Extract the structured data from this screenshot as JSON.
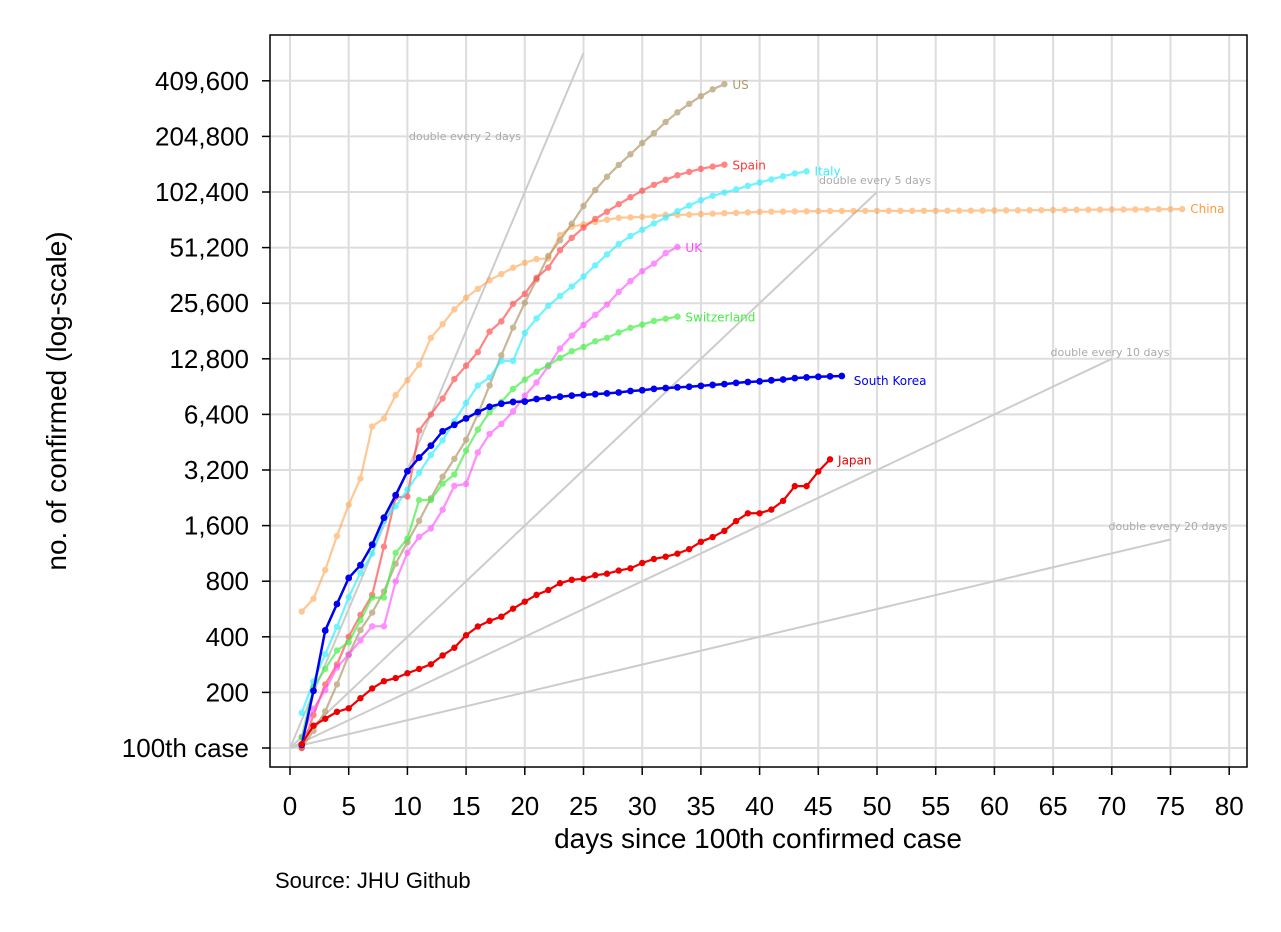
{
  "chart_data": {
    "type": "line",
    "ylabel": "no. of confirmed (log-scale)",
    "xlabel": "days since 100th confirmed case",
    "source": "Source: JHU Github",
    "y_scale": "log2",
    "xlim": [
      0,
      80
    ],
    "ylim": [
      100,
      409600
    ],
    "x_ticks": [
      0,
      5,
      10,
      15,
      20,
      25,
      30,
      35,
      40,
      45,
      50,
      55,
      60,
      65,
      70,
      75,
      80
    ],
    "y_ticks": [
      {
        "value": 100,
        "label": "100th case"
      },
      {
        "value": 200,
        "label": "200"
      },
      {
        "value": 400,
        "label": "400"
      },
      {
        "value": 800,
        "label": "800"
      },
      {
        "value": 1600,
        "label": "1,600"
      },
      {
        "value": 3200,
        "label": "3,200"
      },
      {
        "value": 6400,
        "label": "6,400"
      },
      {
        "value": 12800,
        "label": "12,800"
      },
      {
        "value": 25600,
        "label": "25,600"
      },
      {
        "value": 51200,
        "label": "51,200"
      },
      {
        "value": 102400,
        "label": "102,400"
      },
      {
        "value": 204800,
        "label": "204,800"
      },
      {
        "value": 409600,
        "label": "409,600"
      }
    ],
    "grid": true,
    "reference_lines": [
      {
        "label": "double every 2 days",
        "doubling_days": 2,
        "x_end": 25
      },
      {
        "label": "double every 5 days",
        "doubling_days": 5,
        "x_end": 50
      },
      {
        "label": "double every 10 days",
        "doubling_days": 10,
        "x_end": 70
      },
      {
        "label": "double every 20 days",
        "doubling_days": 20,
        "x_end": 75
      }
    ],
    "series": [
      {
        "name": "China",
        "color": "#ff9a3c",
        "opacity": 0.55,
        "highlight": false,
        "values": [
          548,
          643,
          920,
          1406,
          2075,
          2877,
          5509,
          6087,
          8141,
          9802,
          11891,
          16630,
          19716,
          23707,
          27440,
          30587,
          34110,
          36814,
          39829,
          42354,
          44386,
          44758,
          59895,
          66358,
          68413,
          70513,
          72434,
          74211,
          74619,
          75077,
          75550,
          77001,
          77022,
          77241,
          77754,
          78166,
          78600,
          78928,
          79356,
          79932,
          80136,
          80261,
          80386,
          80537,
          80690,
          80770,
          80823,
          80860,
          80887,
          80921,
          80932,
          80945,
          80977,
          81003,
          81033,
          81058,
          81102,
          81156,
          81250,
          81305,
          81435,
          81498,
          81591,
          81661,
          81782,
          81897,
          81999,
          82122,
          82198,
          82279,
          82361,
          82432,
          82511,
          82600,
          82665,
          82718
        ]
      },
      {
        "name": "US",
        "color": "#b09a6a",
        "opacity": 0.7,
        "highlight": false,
        "values": [
          100,
          124,
          158,
          221,
          319,
          435,
          541,
          704,
          994,
          1301,
          1697,
          2247,
          2943,
          3680,
          4663,
          6411,
          9197,
          13360,
          18882,
          25740,
          34347,
          46135,
          56116,
          68965,
          86005,
          104867,
          123831,
          143532,
          163938,
          188387,
          213318,
          245299,
          276532,
          307317,
          338236,
          368196,
          393000
        ]
      },
      {
        "name": "Spain",
        "color": "#ff3333",
        "opacity": 0.6,
        "highlight": false,
        "values": [
          100,
          151,
          221,
          283,
          400,
          525,
          674,
          1231,
          2277,
          2300,
          5232,
          6391,
          7798,
          9942,
          11748,
          13910,
          17963,
          20410,
          25374,
          28768,
          35136,
          39885,
          49515,
          57786,
          65719,
          73235,
          80110,
          87956,
          95923,
          104118,
          112065,
          119199,
          126168,
          131646,
          136675,
          140510,
          144000
        ]
      },
      {
        "name": "Italy",
        "color": "#33eeff",
        "opacity": 0.7,
        "highlight": false,
        "values": [
          155,
          229,
          322,
          453,
          655,
          888,
          1128,
          1694,
          2036,
          2502,
          3089,
          3858,
          4636,
          5883,
          7375,
          9172,
          10149,
          12462,
          12462,
          17660,
          21157,
          24747,
          27980,
          31506,
          35713,
          41035,
          47021,
          53578,
          59138,
          63927,
          69176,
          74386,
          80589,
          86498,
          92472,
          97689,
          101739,
          105792,
          110574,
          115242,
          119827,
          124632,
          128948,
          132547
        ]
      },
      {
        "name": "UK",
        "color": "#ff44ff",
        "opacity": 0.6,
        "highlight": false,
        "values": [
          115,
          163,
          206,
          273,
          321,
          382,
          456,
          456,
          798,
          1140,
          1391,
          1543,
          1950,
          2626,
          2689,
          3983,
          5018,
          5683,
          6650,
          8077,
          9529,
          11658,
          14543,
          17089,
          19522,
          22141,
          25150,
          29474,
          33718,
          38168,
          41903,
          47806,
          51608
        ]
      },
      {
        "name": "Switzerland",
        "color": "#44ee44",
        "opacity": 0.7,
        "highlight": false,
        "values": [
          114,
          214,
          268,
          337,
          374,
          491,
          652,
          652,
          1139,
          1359,
          2200,
          2200,
          2700,
          3028,
          4075,
          5294,
          6575,
          7474,
          8795,
          9877,
          10897,
          11811,
          12928,
          14076,
          14829,
          15922,
          16605,
          17768,
          18827,
          19606,
          20505,
          21100,
          21657
        ]
      },
      {
        "name": "South Korea",
        "color": "#0000ee",
        "opacity": 1.0,
        "highlight": true,
        "values": [
          104,
          204,
          433,
          602,
          833,
          977,
          1261,
          1766,
          2337,
          3150,
          3736,
          4335,
          5186,
          5621,
          6088,
          6593,
          7041,
          7314,
          7478,
          7513,
          7755,
          7869,
          7979,
          8086,
          8162,
          8236,
          8320,
          8413,
          8565,
          8652,
          8799,
          8897,
          8961,
          9037,
          9137,
          9241,
          9332,
          9478,
          9583,
          9661,
          9786,
          9887,
          10062,
          10156,
          10237,
          10284,
          10331
        ]
      },
      {
        "name": "Japan",
        "color": "#ee0000",
        "opacity": 1.0,
        "highlight": false,
        "values": [
          105,
          132,
          144,
          157,
          164,
          186,
          210,
          230,
          239,
          254,
          268,
          284,
          317,
          349,
          408,
          455,
          488,
          514,
          568,
          620,
          675,
          716,
          780,
          814,
          824,
          862,
          878,
          913,
          939,
          1004,
          1055,
          1086,
          1128,
          1193,
          1307,
          1387,
          1499,
          1693,
          1866,
          1866,
          1953,
          2178,
          2617,
          2617,
          3139,
          3654
        ]
      }
    ]
  }
}
